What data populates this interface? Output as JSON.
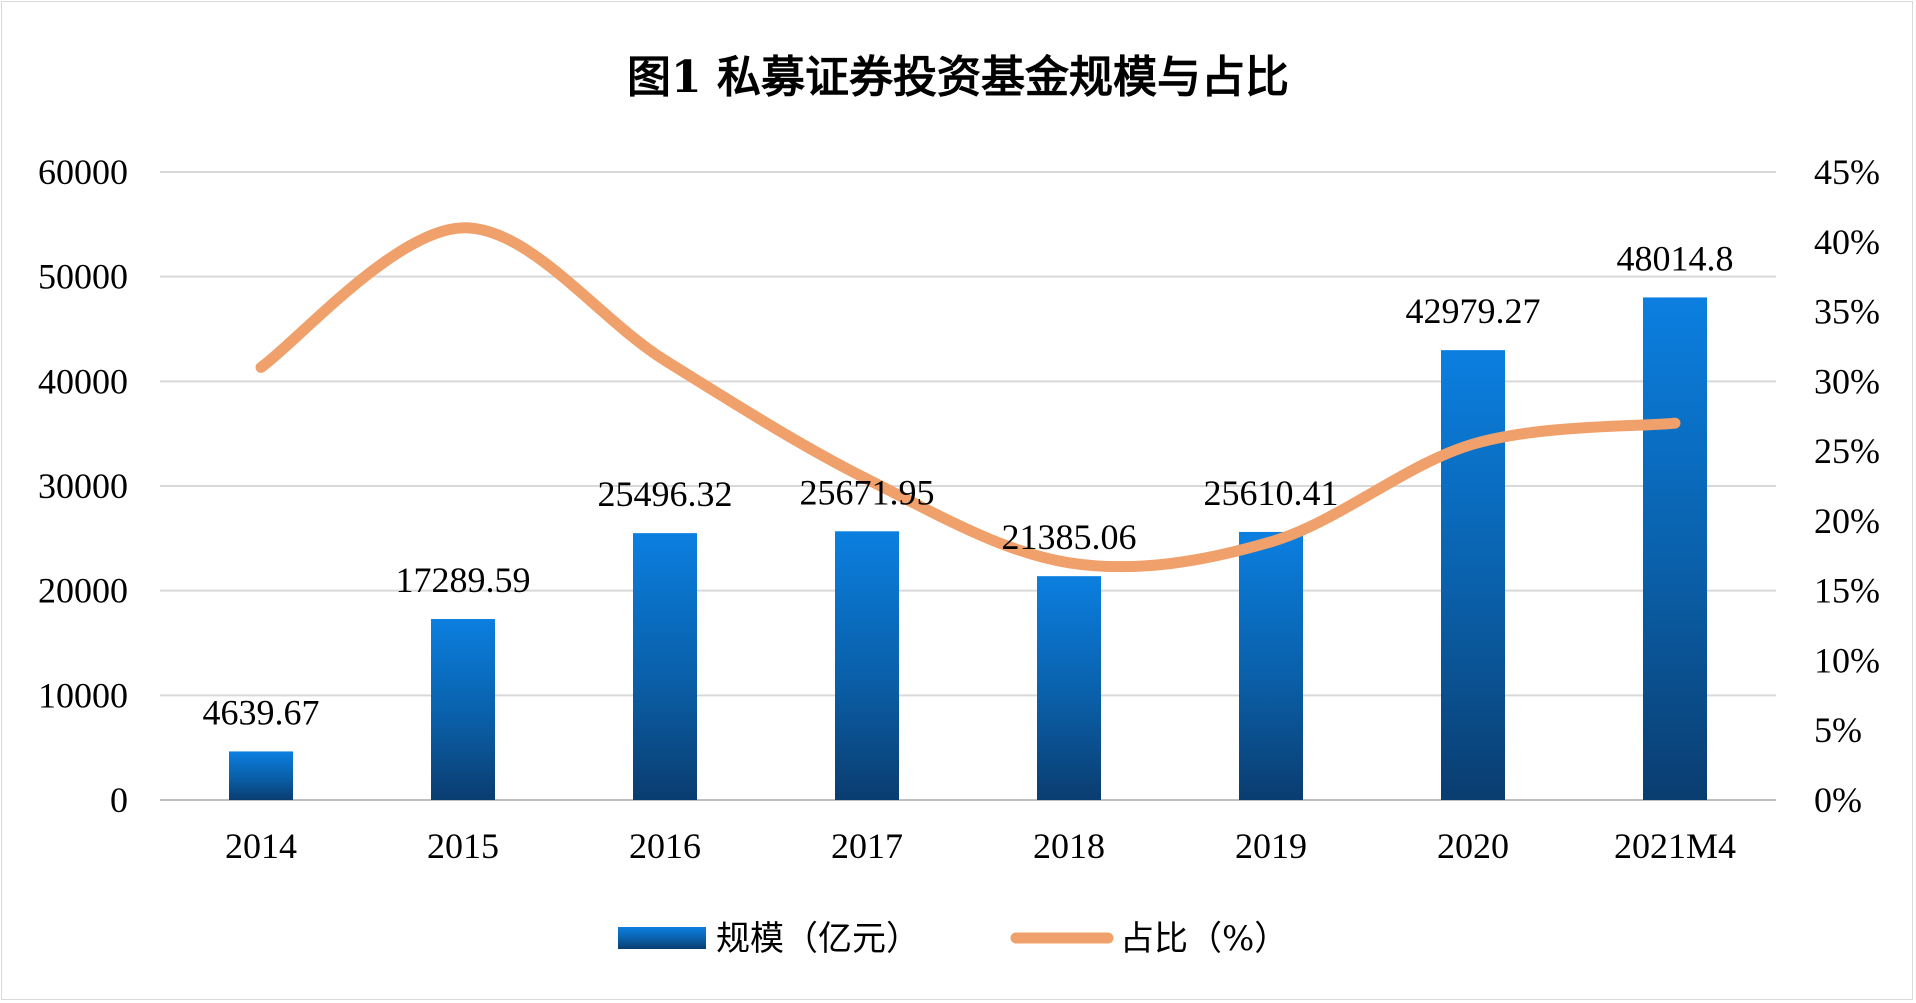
{
  "chart_data": {
    "type": "bar",
    "title": "图1  私募证券投资基金规模与占比",
    "categories": [
      "2014",
      "2015",
      "2016",
      "2017",
      "2018",
      "2019",
      "2020",
      "2021M4"
    ],
    "series": [
      {
        "name": "规模（亿元）",
        "type": "bar",
        "axis": "left",
        "color": "#0a78d4",
        "values": [
          4639.67,
          17289.59,
          25496.32,
          25671.95,
          21385.06,
          25610.41,
          42979.27,
          48014.8
        ],
        "labels": [
          "4639.67",
          "17289.59",
          "25496.32",
          "25671.95",
          "21385.06",
          "25610.41",
          "42979.27",
          "48014.8"
        ]
      },
      {
        "name": "占比（%）",
        "type": "line",
        "axis": "right",
        "color": "#f0a06a",
        "values": [
          31,
          41,
          31.5,
          23,
          17,
          18.5,
          25.5,
          27
        ]
      }
    ],
    "y_left": {
      "ylim": [
        0,
        60000
      ],
      "ticks": [
        "0",
        "10000",
        "20000",
        "30000",
        "40000",
        "50000",
        "60000"
      ]
    },
    "y_right": {
      "ylim": [
        0,
        45
      ],
      "ticks": [
        "0%",
        "5%",
        "10%",
        "15%",
        "20%",
        "25%",
        "30%",
        "35%",
        "40%",
        "45%"
      ]
    },
    "grid": true,
    "legend_position": "bottom"
  }
}
